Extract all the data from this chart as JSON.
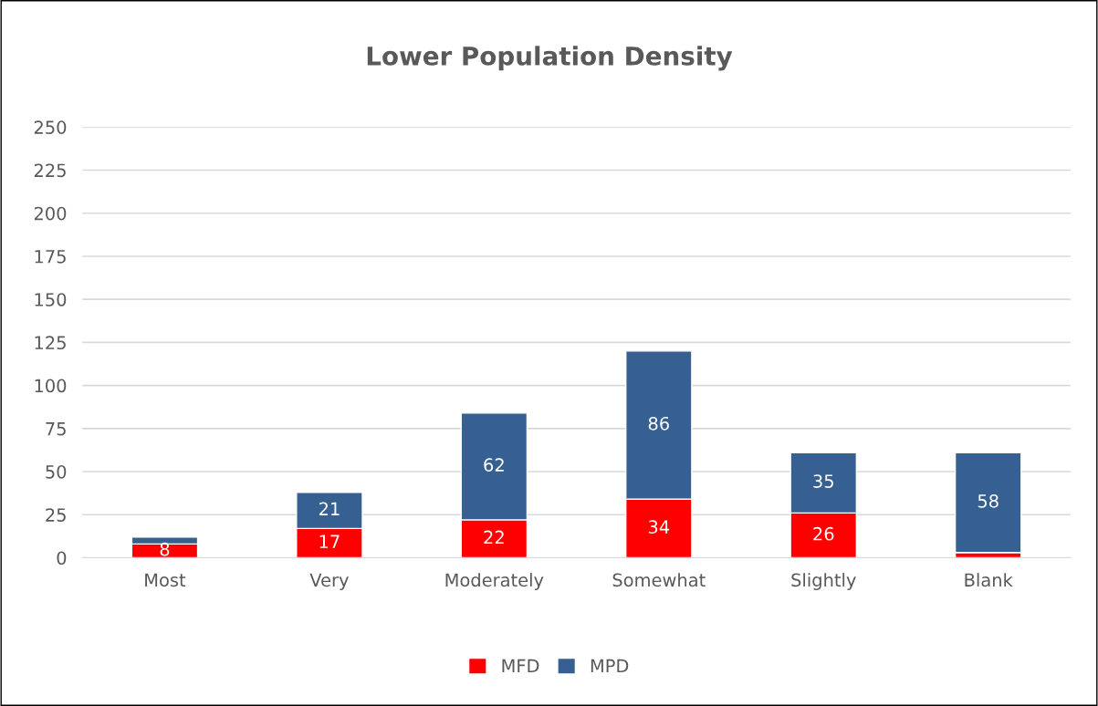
{
  "chart_data": {
    "type": "bar",
    "title": "Lower Population Density",
    "stacked": true,
    "categories": [
      "Most",
      "Very",
      "Moderately",
      "Somewhat",
      "Slightly",
      "Blank"
    ],
    "series": [
      {
        "name": "MFD",
        "color": "#ff0000",
        "values": [
          8,
          17,
          22,
          34,
          26,
          3
        ],
        "value_labels": [
          "8",
          "17",
          "22",
          "34",
          "26",
          null
        ]
      },
      {
        "name": "MPD",
        "color": "#376092",
        "values": [
          4,
          21,
          62,
          86,
          35,
          58
        ],
        "value_labels": [
          null,
          "21",
          "62",
          "86",
          "35",
          "58"
        ]
      }
    ],
    "ylim": [
      0,
      250
    ],
    "yticks": [
      0,
      25,
      50,
      75,
      100,
      125,
      150,
      175,
      200,
      225,
      250
    ],
    "grid": "y",
    "legend": "bottom"
  }
}
